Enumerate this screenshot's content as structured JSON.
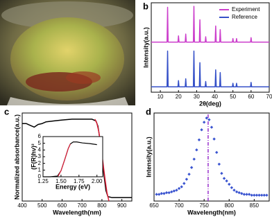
{
  "chart_data": [
    {
      "type": "line",
      "panel_label": "b",
      "x_label": "2θ(deg)",
      "y_label": "Intensity(a.u.)",
      "xlim": [
        5,
        70
      ],
      "xticks": [
        10,
        20,
        30,
        40,
        50,
        60,
        70
      ],
      "ylim": [
        0,
        10
      ],
      "legend": "top-right",
      "x": [
        5,
        13.7,
        14,
        14.3,
        19.7,
        20,
        20.3,
        23.7,
        24,
        24.3,
        28.2,
        28.5,
        28.8,
        31.5,
        31.8,
        32.1,
        34.7,
        35,
        35.3,
        40.2,
        40.5,
        40.8,
        42.7,
        43,
        43.3,
        49.7,
        50,
        50.3,
        51.7,
        52,
        52.3,
        59.7,
        60,
        60.3,
        70
      ],
      "series": [
        {
          "name": "Experiment",
          "color": "#cc3fcc",
          "values": [
            5.6,
            5.6,
            9.5,
            5.6,
            5.6,
            6.3,
            5.6,
            5.6,
            6.5,
            5.6,
            5.6,
            9.6,
            5.6,
            5.6,
            8.1,
            5.6,
            5.6,
            6.2,
            5.6,
            5.6,
            7.4,
            5.6,
            5.6,
            7.0,
            5.6,
            5.6,
            6.0,
            5.6,
            5.6,
            6.0,
            5.6,
            5.6,
            6.1,
            5.6,
            5.6
          ]
        },
        {
          "name": "Reference",
          "color": "#3550c8",
          "values": [
            0.6,
            0.6,
            4.6,
            0.6,
            0.6,
            1.3,
            0.6,
            0.6,
            1.5,
            0.6,
            0.6,
            4.6,
            0.6,
            0.6,
            3.3,
            0.6,
            0.6,
            1.2,
            0.6,
            0.6,
            2.5,
            0.6,
            0.6,
            2.2,
            0.6,
            0.6,
            1.0,
            0.6,
            0.6,
            1.0,
            0.6,
            0.6,
            1.1,
            0.6,
            0.6
          ]
        }
      ]
    },
    {
      "type": "line",
      "panel_label": "c",
      "x_label": "Wavelength(nm)",
      "y_label": "Normalized absorbance(a.u.)",
      "xlim": [
        400,
        950
      ],
      "xticks": [
        400,
        500,
        600,
        700,
        800,
        900
      ],
      "ylim": [
        0,
        1
      ],
      "series": [
        {
          "color": "#000000",
          "x": [
            400,
            420,
            440,
            460,
            480,
            500,
            520,
            560,
            600,
            650,
            700,
            750,
            770,
            780,
            790,
            800,
            810,
            820,
            830,
            850,
            900,
            950
          ],
          "values": [
            0.88,
            0.88,
            0.86,
            0.84,
            0.87,
            0.88,
            0.9,
            0.91,
            0.92,
            0.93,
            0.93,
            0.93,
            0.91,
            0.85,
            0.7,
            0.5,
            0.3,
            0.12,
            0.05,
            0.04,
            0.04,
            0.04
          ]
        },
        {
          "color": "#e0203a",
          "x": [
            765,
            775,
            785,
            795,
            805,
            815,
            825,
            835
          ],
          "values": [
            0.93,
            0.88,
            0.78,
            0.62,
            0.44,
            0.26,
            0.1,
            0.0
          ]
        }
      ]
    },
    {
      "type": "line",
      "x_label": "Energy (eV)",
      "y_label": "(F(R)hν)²",
      "xlim": [
        1.25,
        2.08
      ],
      "xticks": [
        1.25,
        {
          "value": 1.5,
          "label": "1.50"
        },
        1.75,
        {
          "value": 2,
          "label": "2.00"
        }
      ],
      "ylim": [
        0,
        6
      ],
      "yticks": [
        0,
        1,
        2,
        3,
        4,
        5,
        6
      ],
      "series": [
        {
          "color": "#000000",
          "x": [
            1.25,
            1.35,
            1.45,
            1.5,
            1.55,
            1.6,
            1.63,
            1.67,
            1.72,
            1.8,
            1.9,
            2.0
          ],
          "values": [
            0,
            0,
            0.1,
            0.9,
            2.5,
            4.2,
            4.9,
            5.2,
            5.2,
            5.05,
            4.95,
            4.8
          ]
        },
        {
          "color": "#e0203a",
          "x": [
            1.46,
            1.5,
            1.55,
            1.6,
            1.63
          ],
          "values": [
            0.1,
            0.9,
            2.5,
            4.2,
            4.9
          ]
        }
      ]
    },
    {
      "type": "scatter",
      "panel_label": "d",
      "x_label": "Wavelength(nm)",
      "y_label": "Intensity(a.u.)",
      "xlim": [
        650,
        880
      ],
      "xticks": [
        650,
        700,
        750,
        800,
        850
      ],
      "ylim": [
        0,
        1.05
      ],
      "vline": {
        "x": 758,
        "color": "#9933cc"
      },
      "series": [
        {
          "color": "#3b55d0",
          "x": [
            655,
            660,
            665,
            670,
            675,
            680,
            685,
            690,
            695,
            700,
            705,
            710,
            715,
            720,
            725,
            730,
            735,
            740,
            745,
            750,
            755,
            760,
            765,
            770,
            775,
            780,
            785,
            790,
            795,
            800,
            805,
            810,
            815,
            820,
            825,
            830,
            835,
            840,
            845,
            850,
            855,
            860,
            865,
            870,
            875
          ],
          "values": [
            0.08,
            0.08,
            0.09,
            0.09,
            0.1,
            0.1,
            0.11,
            0.12,
            0.13,
            0.15,
            0.17,
            0.21,
            0.26,
            0.32,
            0.4,
            0.5,
            0.61,
            0.73,
            0.85,
            0.94,
            0.99,
            0.97,
            0.88,
            0.74,
            0.58,
            0.44,
            0.33,
            0.27,
            0.24,
            0.2,
            0.16,
            0.13,
            0.11,
            0.1,
            0.09,
            0.08,
            0.08,
            0.08,
            0.07,
            0.07,
            0.07,
            0.07,
            0.07,
            0.07,
            0.07
          ]
        }
      ]
    }
  ]
}
